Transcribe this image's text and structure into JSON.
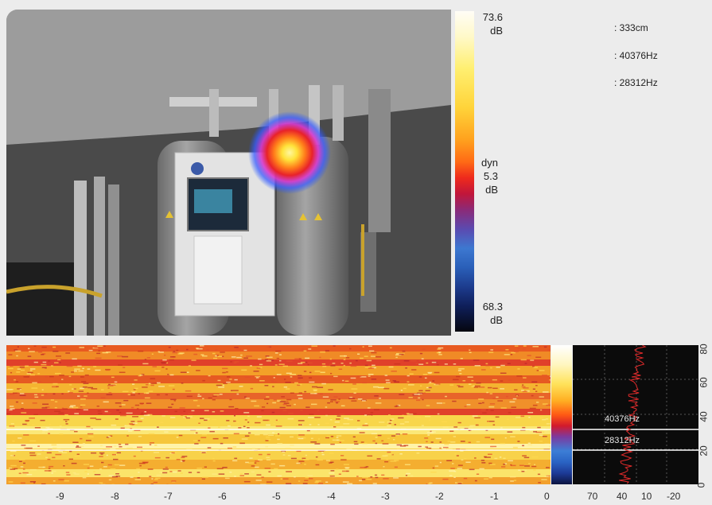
{
  "scale": {
    "max_value": "73.6",
    "max_unit": "dB",
    "mode": "dyn",
    "range_value": "5.3",
    "range_unit": "dB",
    "min_value": "68.3",
    "min_unit": "dB"
  },
  "readouts": {
    "distance": ": 333cm",
    "freq_upper": ": 40376Hz",
    "freq_lower": ": 28312Hz"
  },
  "spectrogram": {
    "time_ticks": [
      "-9",
      "-8",
      "-7",
      "-6",
      "-5",
      "-4",
      "-3",
      "-2",
      "-1",
      "0"
    ],
    "marker_upper": "40376Hz",
    "marker_lower": "28312Hz",
    "level_ticks": [
      "70",
      "40",
      "10",
      "-20"
    ],
    "freq_ticks": [
      "80",
      "60",
      "40",
      "20",
      "0"
    ]
  },
  "colors": {
    "hotspot_core": "#ffe23a",
    "hotspot_edge": "#1e55ff",
    "marker_line": "#ffffff",
    "trace": "#e02a2a"
  }
}
